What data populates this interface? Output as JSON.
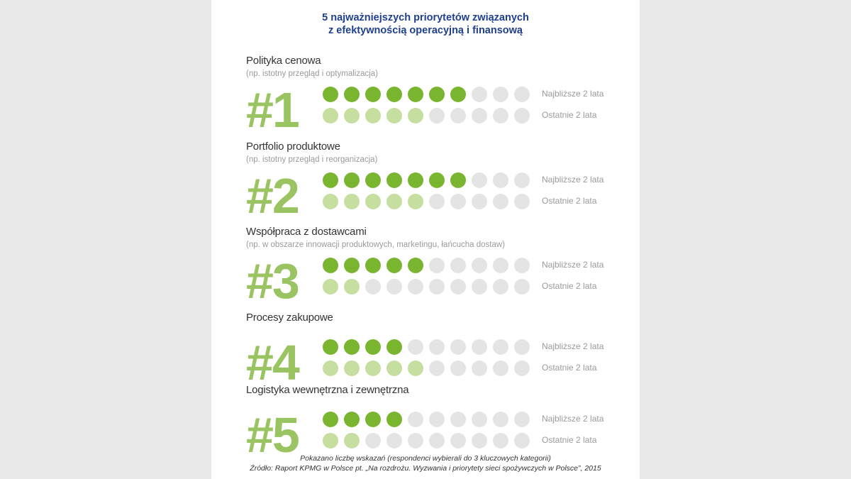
{
  "header": {
    "title_line1": "5 najważniejszych priorytetów związanych",
    "title_line2": "z efektywnością operacyjną i finansową"
  },
  "colors": {
    "title": "#1f3f8f",
    "rank_text": "#9ac461",
    "dot_next": "#7ab530",
    "dot_past": "#c6dea0",
    "dot_empty": "#e4e4e4"
  },
  "chart_data": {
    "type": "dot-rating",
    "total_dots": 10,
    "series": [
      {
        "name": "Najbliższe 2 lata"
      },
      {
        "name": "Ostatnie 2 lata"
      }
    ],
    "categories": [
      {
        "rank": "#1",
        "label": "Polityka cenowa",
        "sub": "(np. istotny przegląd i optymalizacja)",
        "next": 7,
        "past": 5
      },
      {
        "rank": "#2",
        "label": "Portfolio produktowe",
        "sub": "(np. istotny przegląd i reorganizacja)",
        "next": 7,
        "past": 5
      },
      {
        "rank": "#3",
        "label": "Współpraca z dostawcami",
        "sub": "(np. w obszarze innowacji produktowych, marketingu, łańcucha dostaw)",
        "next": 5,
        "past": 2
      },
      {
        "rank": "#4",
        "label": "Procesy zakupowe",
        "sub": "",
        "next": 4,
        "past": 5
      },
      {
        "rank": "#5",
        "label": "Logistyka wewnętrzna i zewnętrzna",
        "sub": "",
        "next": 4,
        "past": 2
      }
    ]
  },
  "footer": {
    "note": "Pokazano liczbę wskazań (respondenci wybierali do 3 kluczowych kategorii)",
    "source": "Źródło: Raport KPMG w Polsce pt. „Na rozdrożu. Wyzwania i priorytety sieci spożywczych w Polsce”, 2015"
  }
}
